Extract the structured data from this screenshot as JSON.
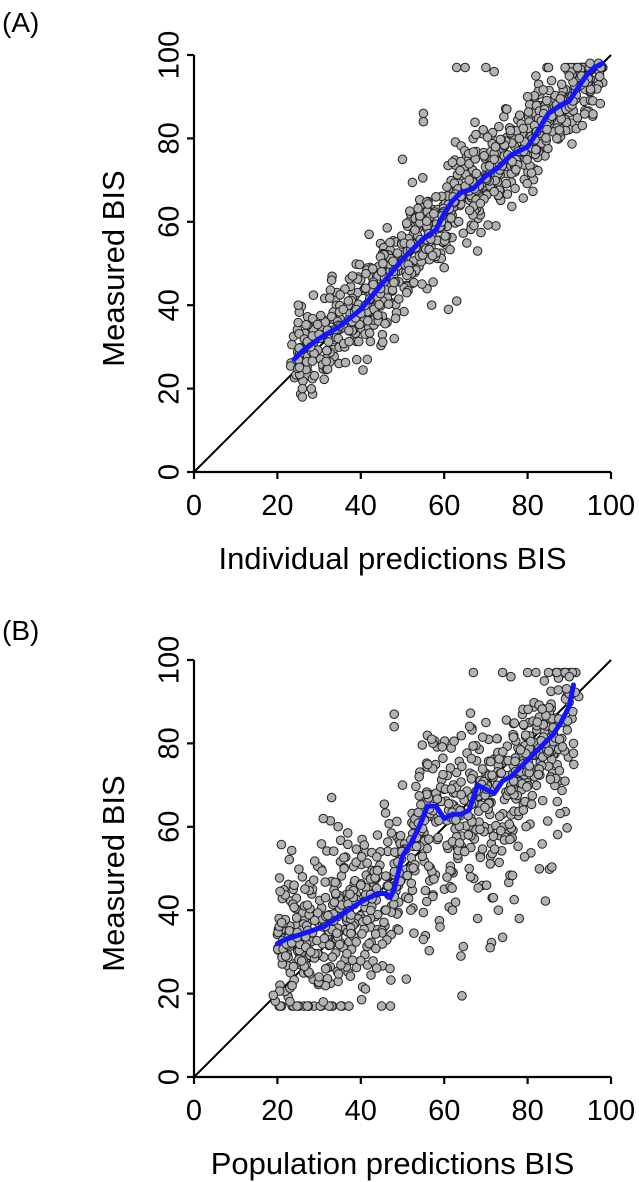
{
  "chart_data": [
    {
      "panel": "(A)",
      "type": "scatter",
      "title": "",
      "xlabel": "Individual predictions BIS",
      "ylabel": "Measured BIS",
      "xlim": [
        0,
        100
      ],
      "ylim": [
        0,
        100
      ],
      "xticks": [
        0,
        20,
        40,
        60,
        80,
        100
      ],
      "yticks": [
        0,
        20,
        40,
        60,
        80,
        100
      ],
      "identity_line": true,
      "grid": false,
      "legend": "none",
      "colors": {
        "points": "#b3b3b3",
        "trend": "#1414ff",
        "identity": "#000000"
      },
      "points_seed": 11,
      "points": [
        [
          25,
          40
        ],
        [
          26,
          18
        ],
        [
          26,
          20
        ],
        [
          28,
          30
        ],
        [
          30,
          33
        ],
        [
          32,
          34
        ],
        [
          33,
          46
        ],
        [
          35,
          35
        ],
        [
          37,
          41
        ],
        [
          38,
          47
        ],
        [
          40,
          38
        ],
        [
          42,
          57
        ],
        [
          43,
          45
        ],
        [
          45,
          48
        ],
        [
          47,
          55
        ],
        [
          48,
          32
        ],
        [
          50,
          75
        ],
        [
          51,
          43
        ],
        [
          53,
          58
        ],
        [
          55,
          86
        ],
        [
          55,
          84
        ],
        [
          57,
          40
        ],
        [
          58,
          66
        ],
        [
          60,
          49
        ],
        [
          61,
          39
        ],
        [
          63,
          41
        ],
        [
          63,
          97
        ],
        [
          65,
          97
        ],
        [
          66,
          70
        ],
        [
          68,
          53
        ],
        [
          70,
          97
        ],
        [
          72,
          96
        ],
        [
          72,
          75
        ],
        [
          75,
          87
        ],
        [
          77,
          68
        ],
        [
          78,
          80
        ],
        [
          80,
          90
        ],
        [
          82,
          95
        ],
        [
          85,
          97
        ],
        [
          87,
          80
        ],
        [
          89,
          97
        ],
        [
          90,
          95
        ],
        [
          92,
          97
        ],
        [
          95,
          98
        ],
        [
          97,
          98
        ]
      ],
      "trend": {
        "x": [
          24,
          26,
          30,
          35,
          40,
          45,
          50,
          55,
          58,
          60,
          62,
          64,
          67,
          70,
          73,
          76,
          78,
          80,
          82,
          85,
          88,
          90,
          92,
          94,
          96,
          98
        ],
        "y": [
          27,
          29,
          32,
          35,
          39,
          45,
          51,
          56,
          58,
          62,
          65,
          67,
          68,
          71,
          73,
          76,
          77,
          78,
          81,
          86,
          88,
          89,
          92,
          95,
          97,
          98
        ]
      }
    },
    {
      "panel": "(B)",
      "type": "scatter",
      "title": "",
      "xlabel": "Population predictions BIS",
      "ylabel": "Measured BIS",
      "xlim": [
        0,
        100
      ],
      "ylim": [
        0,
        100
      ],
      "xticks": [
        0,
        20,
        40,
        60,
        80,
        100
      ],
      "yticks": [
        0,
        20,
        40,
        60,
        80,
        100
      ],
      "identity_line": true,
      "grid": false,
      "legend": "none",
      "colors": {
        "points": "#b3b3b3",
        "trend": "#1414ff",
        "identity": "#000000"
      },
      "points_seed": 23,
      "points": [
        [
          21,
          37
        ],
        [
          22,
          29
        ],
        [
          24,
          46
        ],
        [
          26,
          48
        ],
        [
          28,
          30
        ],
        [
          30,
          24
        ],
        [
          31,
          18
        ],
        [
          31,
          62
        ],
        [
          33,
          67
        ],
        [
          34,
          44
        ],
        [
          36,
          50
        ],
        [
          38,
          28
        ],
        [
          40,
          46
        ],
        [
          42,
          32
        ],
        [
          44,
          58
        ],
        [
          46,
          40
        ],
        [
          47,
          26
        ],
        [
          48,
          87
        ],
        [
          48,
          84
        ],
        [
          50,
          70
        ],
        [
          52,
          40
        ],
        [
          54,
          72
        ],
        [
          55,
          33
        ],
        [
          57,
          81
        ],
        [
          59,
          36
        ],
        [
          62,
          40
        ],
        [
          64,
          29
        ],
        [
          66,
          50
        ],
        [
          67,
          97
        ],
        [
          68,
          38
        ],
        [
          70,
          85
        ],
        [
          71,
          31
        ],
        [
          73,
          40
        ],
        [
          74,
          97
        ],
        [
          76,
          96
        ],
        [
          78,
          38
        ],
        [
          79,
          64
        ],
        [
          80,
          97
        ],
        [
          82,
          97
        ],
        [
          84,
          95
        ],
        [
          85,
          97
        ],
        [
          87,
          97
        ],
        [
          89,
          97
        ],
        [
          90,
          96
        ],
        [
          91,
          80
        ]
      ],
      "trend": {
        "x": [
          20,
          22,
          25,
          28,
          31,
          34,
          37,
          40,
          42,
          44,
          46,
          47,
          48,
          50,
          52,
          54,
          56,
          58,
          60,
          62,
          64,
          66,
          68,
          70,
          72,
          74,
          76,
          78,
          80,
          82,
          84,
          86,
          88,
          90,
          91
        ],
        "y": [
          32,
          33,
          34,
          35,
          36,
          38,
          40,
          42,
          43,
          44,
          44,
          43,
          45,
          53,
          56,
          60,
          65,
          65,
          62,
          63,
          63,
          64,
          70,
          69,
          68,
          71,
          72,
          74,
          76,
          78,
          80,
          82,
          85,
          89,
          94
        ]
      }
    }
  ]
}
